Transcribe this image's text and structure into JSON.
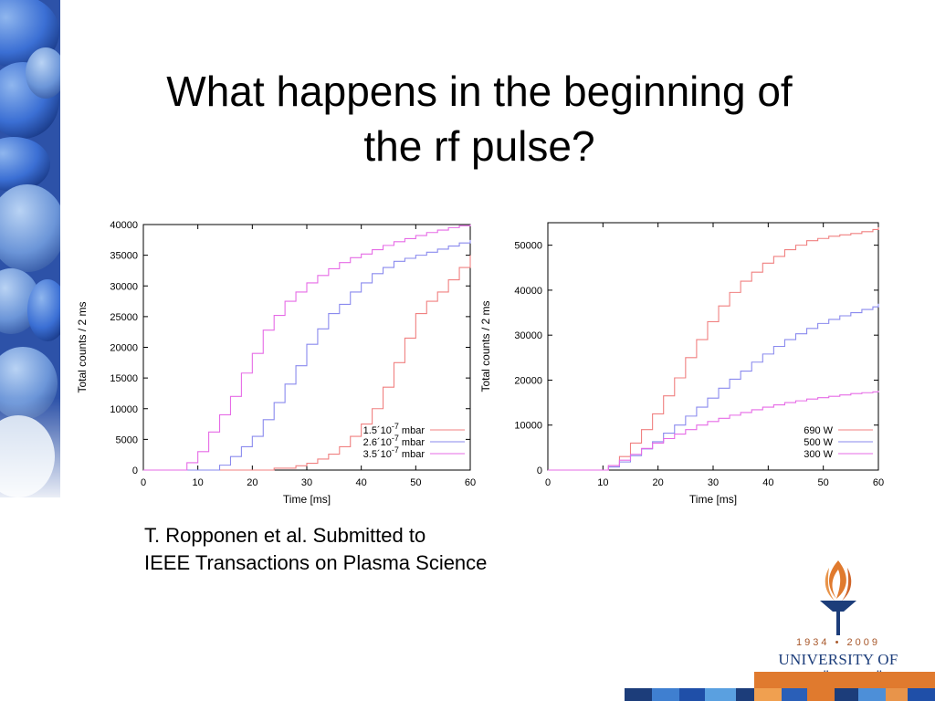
{
  "slide": {
    "title_line1": "What happens in the beginning of",
    "title_line2": "the rf pulse?"
  },
  "caption": {
    "line1": "T. Ropponen et al. Submitted to",
    "line2": "IEEE Transactions on Plasma Science"
  },
  "logo": {
    "years": "1934 • 2009",
    "name": "UNIVERSITY OF JYVÄSKYLÄ"
  },
  "colors": {
    "accent_blue": "#1c3d7a",
    "accent_orange": "#e07a2e"
  },
  "chart_data": [
    {
      "type": "line",
      "xlabel": "Time [ms]",
      "ylabel": "Total counts / 2 ms",
      "xlim": [
        0,
        60
      ],
      "ylim": [
        0,
        40000
      ],
      "xticks": [
        0,
        10,
        20,
        30,
        40,
        50,
        60
      ],
      "yticks": [
        0,
        5000,
        10000,
        15000,
        20000,
        25000,
        30000,
        35000,
        40000
      ],
      "legend_position": "bottom-right",
      "series": [
        {
          "name": "1.5´10-7 mbar",
          "legend_base": "1.5´10",
          "legend_exp": "-7",
          "legend_unit": " mbar",
          "color": "#f08080",
          "x": [
            0,
            20,
            24,
            28,
            30,
            32,
            34,
            36,
            38,
            40,
            42,
            44,
            46,
            48,
            50,
            52,
            54,
            56,
            58,
            60
          ],
          "y": [
            0,
            0,
            300,
            700,
            1100,
            1800,
            2600,
            3800,
            5500,
            7500,
            10000,
            13500,
            17500,
            21500,
            25500,
            27500,
            29000,
            31000,
            33000,
            35000
          ]
        },
        {
          "name": "2.6´10-7 mbar",
          "legend_base": "2.6´10",
          "legend_exp": "-7",
          "legend_unit": " mbar",
          "color": "#8a8aee",
          "x": [
            0,
            12,
            14,
            16,
            18,
            20,
            22,
            24,
            26,
            28,
            30,
            32,
            34,
            36,
            38,
            40,
            42,
            44,
            46,
            48,
            50,
            52,
            54,
            56,
            58,
            60
          ],
          "y": [
            0,
            0,
            800,
            2200,
            3800,
            5500,
            8200,
            11000,
            14000,
            17000,
            20500,
            23000,
            25500,
            27000,
            29000,
            30500,
            32000,
            33000,
            34000,
            34500,
            35000,
            35500,
            36000,
            36500,
            37000,
            37500
          ]
        },
        {
          "name": "3.5´10-7 mbar",
          "legend_base": "3.5´10",
          "legend_exp": "-7",
          "legend_unit": " mbar",
          "color": "#e66be6",
          "x": [
            0,
            6,
            8,
            10,
            12,
            14,
            16,
            18,
            20,
            22,
            24,
            26,
            28,
            30,
            32,
            34,
            36,
            38,
            40,
            42,
            44,
            46,
            48,
            50,
            52,
            54,
            56,
            58,
            60
          ],
          "y": [
            0,
            0,
            1200,
            3000,
            6200,
            9000,
            12000,
            15800,
            19000,
            22800,
            25200,
            27500,
            29000,
            30500,
            31700,
            32800,
            33800,
            34600,
            35200,
            35900,
            36600,
            37200,
            37700,
            38200,
            38700,
            39100,
            39500,
            39800,
            40000
          ]
        }
      ]
    },
    {
      "type": "line",
      "xlabel": "Time [ms]",
      "ylabel": "Total counts / 2 ms",
      "xlim": [
        0,
        60
      ],
      "ylim": [
        0,
        55000
      ],
      "xticks": [
        0,
        10,
        20,
        30,
        40,
        50,
        60
      ],
      "yticks": [
        0,
        10000,
        20000,
        30000,
        40000,
        50000
      ],
      "legend_position": "bottom-right",
      "series": [
        {
          "name": "690 W",
          "legend_base": "690 W",
          "legend_exp": "",
          "legend_unit": "",
          "color": "#f08080",
          "x": [
            0,
            9,
            11,
            13,
            15,
            17,
            19,
            21,
            23,
            25,
            27,
            29,
            31,
            33,
            35,
            37,
            39,
            41,
            43,
            45,
            47,
            49,
            51,
            53,
            55,
            57,
            59,
            60
          ],
          "y": [
            0,
            0,
            1000,
            3000,
            6000,
            9000,
            12500,
            16500,
            20500,
            25000,
            29000,
            33000,
            36500,
            39500,
            42000,
            44000,
            46000,
            47500,
            49000,
            50000,
            51000,
            51500,
            52000,
            52300,
            52600,
            53000,
            53500,
            54000
          ]
        },
        {
          "name": "500 W",
          "legend_base": "500 W",
          "legend_exp": "",
          "legend_unit": "",
          "color": "#8a8aee",
          "x": [
            0,
            9,
            11,
            13,
            15,
            17,
            19,
            21,
            23,
            25,
            27,
            29,
            31,
            33,
            35,
            37,
            39,
            41,
            43,
            45,
            47,
            49,
            51,
            53,
            55,
            57,
            59,
            60
          ],
          "y": [
            0,
            0,
            700,
            1800,
            3200,
            4700,
            6300,
            8200,
            10000,
            12000,
            14000,
            16000,
            18200,
            20200,
            22000,
            24000,
            25800,
            27500,
            29000,
            30300,
            31500,
            32600,
            33500,
            34300,
            35000,
            35700,
            36300,
            37000
          ]
        },
        {
          "name": "300 W",
          "legend_base": "300 W",
          "legend_exp": "",
          "legend_unit": "",
          "color": "#e66be6",
          "x": [
            0,
            9,
            11,
            13,
            15,
            17,
            19,
            21,
            23,
            25,
            27,
            29,
            31,
            33,
            35,
            37,
            39,
            41,
            43,
            45,
            47,
            49,
            51,
            53,
            55,
            57,
            59,
            60
          ],
          "y": [
            0,
            0,
            1000,
            2200,
            3500,
            4800,
            6000,
            7000,
            8000,
            9000,
            10000,
            10800,
            11500,
            12200,
            12800,
            13400,
            14000,
            14500,
            15000,
            15400,
            15800,
            16100,
            16400,
            16700,
            17000,
            17200,
            17400,
            17600
          ]
        }
      ]
    }
  ]
}
